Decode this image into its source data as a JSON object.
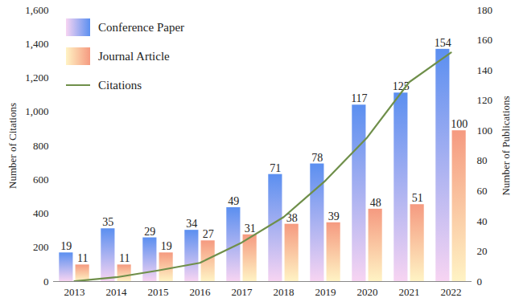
{
  "chart_data": {
    "type": "bar",
    "categories": [
      "2013",
      "2014",
      "2015",
      "2016",
      "2017",
      "2018",
      "2019",
      "2020",
      "2021",
      "2022"
    ],
    "series": [
      {
        "name": "Conference Paper",
        "type": "bar",
        "color": "#5b8ff0",
        "axis": "y2",
        "data_labels": true,
        "values": [
          19,
          35,
          29,
          34,
          49,
          71,
          78,
          117,
          125,
          154
        ]
      },
      {
        "name": "Journal Article",
        "type": "bar",
        "color": "#f59a80",
        "axis": "y2",
        "data_labels": true,
        "values": [
          11,
          11,
          19,
          27,
          31,
          38,
          39,
          48,
          51,
          100
        ]
      },
      {
        "name": "Citations",
        "type": "line",
        "color": "#6f8f4a",
        "values": [
          2,
          25,
          65,
          110,
          230,
          380,
          595,
          850,
          1175,
          1350
        ]
      }
    ],
    "ylabel": "Number of Citations",
    "y2label": "Number of Publications",
    "ylim": [
      0,
      1600
    ],
    "yticks": [
      0,
      200,
      400,
      600,
      800,
      1000,
      1200,
      1400,
      1600
    ],
    "y2lim": [
      0,
      180
    ],
    "y2ticks": [
      0,
      20,
      40,
      60,
      80,
      100,
      120,
      140,
      160,
      180
    ],
    "legend": "upper left"
  }
}
